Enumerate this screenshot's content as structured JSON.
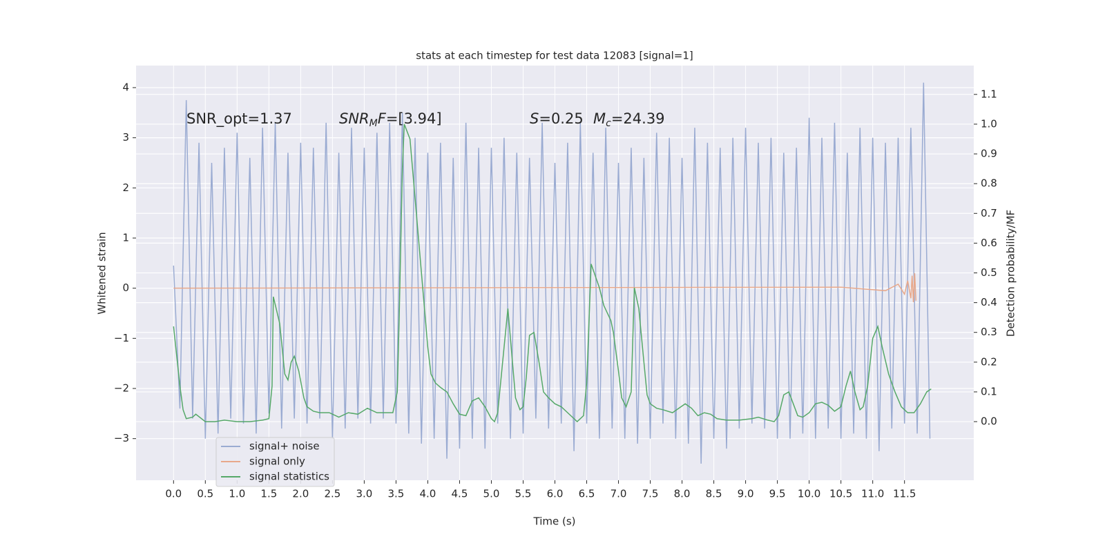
{
  "chart_data": {
    "type": "line",
    "title": "stats at each timestep for test data 12083 [signal=1]",
    "xlabel": "Time (s)",
    "ylabel": "Whitened strain",
    "y2label": "Detection probability/MF",
    "xlim": [
      -0.59,
      12.59
    ],
    "ylim": [
      -3.83,
      4.44
    ],
    "y2lim": [
      -0.197,
      1.197
    ],
    "xticks": [
      {
        "value": 0,
        "label": "0.0"
      },
      0.5,
      {
        "value": 1,
        "label": "1.0"
      },
      1.5,
      {
        "value": 2,
        "label": "2.0"
      },
      2.5,
      {
        "value": 3,
        "label": "3.0"
      },
      3.5,
      {
        "value": 4,
        "label": "4.0"
      },
      4.5,
      {
        "value": 5,
        "label": "5.0"
      },
      5.5,
      {
        "value": 6,
        "label": "6.0"
      },
      6.5,
      {
        "value": 7,
        "label": "7.0"
      },
      7.5,
      {
        "value": 8,
        "label": "8.0"
      },
      8.5,
      {
        "value": 9,
        "label": "9.0"
      },
      9.5,
      {
        "value": 10,
        "label": "10.0"
      },
      10.5,
      {
        "value": 11,
        "label": "11.0"
      },
      11.5
    ],
    "yticks": [
      {
        "value": -3,
        "label": "−3"
      },
      {
        "value": -2,
        "label": "−2"
      },
      {
        "value": -1,
        "label": "−1"
      },
      0,
      1,
      2,
      3,
      4
    ],
    "y2ticks": [
      {
        "value": 0,
        "label": "0.0"
      },
      0.1,
      0.2,
      0.3,
      0.4,
      0.5,
      0.6,
      0.7,
      0.8,
      0.9,
      {
        "value": 1,
        "label": "1.0"
      },
      1.1
    ],
    "grid": true,
    "legend": "lower left",
    "annotations": [
      {
        "parts": [
          {
            "text": "SNR_opt=1.37"
          }
        ]
      },
      {
        "parts": [
          {
            "text": "SNR",
            "italic": true
          },
          {
            "text": "M",
            "italic": true,
            "sub": true
          },
          {
            "text": "F",
            "italic": true
          },
          {
            "text": "=[3.94]"
          }
        ]
      },
      {
        "parts": [
          {
            "text": "S",
            "italic": true
          },
          {
            "text": "=0.25"
          }
        ]
      },
      {
        "parts": [
          {
            "text": "M",
            "italic": true
          },
          {
            "text": "c",
            "italic": true,
            "sub": true
          },
          {
            "text": "=24.39"
          }
        ]
      }
    ],
    "series": [
      {
        "name": "signal+ noise",
        "color": "#9aabd2",
        "x": [
          0,
          0.1,
          0.2,
          0.3,
          0.4,
          0.5,
          0.6,
          0.7,
          0.8,
          0.9,
          1,
          1.1,
          1.2,
          1.3,
          1.4,
          1.5,
          1.6,
          1.7,
          1.8,
          1.9,
          2,
          2.1,
          2.2,
          2.3,
          2.4,
          2.5,
          2.6,
          2.7,
          2.8,
          2.9,
          3,
          3.1,
          3.2,
          3.3,
          3.4,
          3.5,
          3.6,
          3.7,
          3.8,
          3.9,
          4,
          4.1,
          4.2,
          4.3,
          4.4,
          4.5,
          4.6,
          4.7,
          4.8,
          4.9,
          5,
          5.1,
          5.2,
          5.3,
          5.4,
          5.5,
          5.6,
          5.7,
          5.8,
          5.9,
          6,
          6.1,
          6.2,
          6.3,
          6.4,
          6.5,
          6.6,
          6.7,
          6.8,
          6.9,
          7,
          7.1,
          7.2,
          7.3,
          7.4,
          7.5,
          7.6,
          7.7,
          7.8,
          7.9,
          8,
          8.1,
          8.2,
          8.3,
          8.4,
          8.5,
          8.6,
          8.7,
          8.8,
          8.9,
          9,
          9.1,
          9.2,
          9.3,
          9.4,
          9.5,
          9.6,
          9.7,
          9.8,
          9.9,
          10,
          10.1,
          10.2,
          10.3,
          10.4,
          10.5,
          10.6,
          10.7,
          10.8,
          10.9,
          11,
          11.1,
          11.2,
          11.3,
          11.4,
          11.5,
          11.6,
          11.7,
          11.8,
          11.9
        ],
        "values": [
          0.45,
          -2.4,
          3.75,
          -2.6,
          2.9,
          -3.0,
          2.5,
          -2.9,
          2.8,
          -2.6,
          3.1,
          -2.7,
          2.6,
          -2.9,
          3.2,
          -2.5,
          3.3,
          -2.8,
          2.7,
          -2.6,
          2.9,
          -2.7,
          2.8,
          -2.6,
          3.3,
          -3.0,
          2.7,
          -2.8,
          3.2,
          -2.6,
          2.8,
          -2.7,
          3.1,
          -2.6,
          3.3,
          -2.7,
          3.5,
          -2.9,
          3.0,
          -3.1,
          2.7,
          -3.0,
          2.9,
          -3.4,
          2.6,
          -3.2,
          3.3,
          -3.0,
          2.8,
          -3.2,
          2.8,
          -2.7,
          3.0,
          -3.0,
          2.7,
          -2.9,
          2.6,
          -2.6,
          3.3,
          -2.8,
          2.5,
          -2.7,
          2.9,
          -3.25,
          3.3,
          -2.7,
          2.7,
          -3.0,
          3.2,
          -2.8,
          2.5,
          -3.0,
          2.8,
          -3.1,
          2.6,
          -3.0,
          3.1,
          -2.7,
          3.0,
          -3.0,
          2.6,
          -3.1,
          3.2,
          -3.5,
          2.9,
          -3.0,
          2.8,
          -3.2,
          3.0,
          -2.8,
          3.2,
          -2.7,
          2.9,
          -2.8,
          3.0,
          -3.0,
          2.7,
          -3.0,
          2.8,
          -2.9,
          3.4,
          -3.0,
          3.0,
          -2.8,
          3.3,
          -3.0,
          2.7,
          -2.9,
          3.2,
          -3.0,
          3.0,
          -3.25,
          2.9,
          -2.8,
          3.0,
          -2.7,
          3.2,
          -2.9,
          4.1,
          -3.0
        ]
      },
      {
        "name": "signal only",
        "color": "#e8a88a",
        "x": [
          0,
          10.5,
          11.2,
          11.4,
          11.5,
          11.55,
          11.6,
          11.62,
          11.64,
          11.66,
          11.68
        ],
        "values": [
          0,
          0.02,
          -0.05,
          0.08,
          -0.12,
          0.15,
          -0.2,
          0.25,
          -0.28,
          0.3,
          -0.25
        ]
      },
      {
        "name": "signal statistics",
        "color": "#55a868",
        "axis": "y2",
        "x": [
          0,
          0.1,
          0.15,
          0.2,
          0.3,
          0.35,
          0.5,
          0.65,
          0.8,
          1.0,
          1.2,
          1.4,
          1.5,
          1.55,
          1.57,
          1.67,
          1.75,
          1.8,
          1.85,
          1.9,
          1.97,
          2.05,
          2.1,
          2.2,
          2.3,
          2.45,
          2.6,
          2.75,
          2.9,
          3.05,
          3.2,
          3.35,
          3.45,
          3.52,
          3.55,
          3.6,
          3.63,
          3.72,
          3.8,
          3.9,
          4.0,
          4.05,
          4.12,
          4.2,
          4.3,
          4.4,
          4.5,
          4.6,
          4.7,
          4.8,
          4.9,
          5.0,
          5.05,
          5.1,
          5.2,
          5.26,
          5.32,
          5.38,
          5.45,
          5.5,
          5.55,
          5.6,
          5.67,
          5.75,
          5.82,
          5.9,
          6.0,
          6.1,
          6.2,
          6.3,
          6.35,
          6.45,
          6.5,
          6.57,
          6.7,
          6.77,
          6.88,
          6.92,
          7.0,
          7.05,
          7.12,
          7.2,
          7.25,
          7.32,
          7.4,
          7.45,
          7.5,
          7.6,
          7.7,
          7.85,
          7.95,
          8.05,
          8.15,
          8.25,
          8.35,
          8.45,
          8.55,
          8.7,
          8.9,
          9.1,
          9.2,
          9.35,
          9.45,
          9.52,
          9.6,
          9.68,
          9.75,
          9.82,
          9.9,
          10.0,
          10.1,
          10.2,
          10.3,
          10.4,
          10.5,
          10.58,
          10.65,
          10.72,
          10.8,
          10.85,
          10.92,
          11.0,
          11.08,
          11.15,
          11.25,
          11.35,
          11.45,
          11.55,
          11.65,
          11.75,
          11.85,
          11.92
        ],
        "values": [
          0.32,
          0.12,
          0.04,
          0.01,
          0.015,
          0.025,
          0.0,
          0.0,
          0.005,
          0.0,
          0.0,
          0.005,
          0.01,
          0.12,
          0.42,
          0.33,
          0.16,
          0.14,
          0.2,
          0.22,
          0.17,
          0.08,
          0.05,
          0.035,
          0.03,
          0.03,
          0.015,
          0.03,
          0.025,
          0.045,
          0.03,
          0.03,
          0.03,
          0.1,
          0.35,
          0.85,
          1.0,
          0.95,
          0.75,
          0.5,
          0.25,
          0.16,
          0.13,
          0.115,
          0.1,
          0.06,
          0.025,
          0.02,
          0.07,
          0.08,
          0.05,
          0.01,
          0.0,
          0.03,
          0.25,
          0.38,
          0.23,
          0.08,
          0.04,
          0.05,
          0.15,
          0.29,
          0.3,
          0.2,
          0.1,
          0.08,
          0.06,
          0.05,
          0.03,
          0.01,
          0.0,
          0.02,
          0.13,
          0.53,
          0.45,
          0.39,
          0.34,
          0.3,
          0.17,
          0.08,
          0.05,
          0.1,
          0.45,
          0.38,
          0.2,
          0.09,
          0.06,
          0.045,
          0.04,
          0.03,
          0.045,
          0.06,
          0.045,
          0.02,
          0.03,
          0.025,
          0.01,
          0.005,
          0.005,
          0.01,
          0.015,
          0.005,
          0.0,
          0.02,
          0.09,
          0.1,
          0.06,
          0.02,
          0.015,
          0.03,
          0.06,
          0.065,
          0.055,
          0.035,
          0.05,
          0.12,
          0.17,
          0.1,
          0.04,
          0.05,
          0.12,
          0.28,
          0.32,
          0.25,
          0.16,
          0.1,
          0.05,
          0.03,
          0.03,
          0.06,
          0.1,
          0.11
        ]
      }
    ]
  }
}
